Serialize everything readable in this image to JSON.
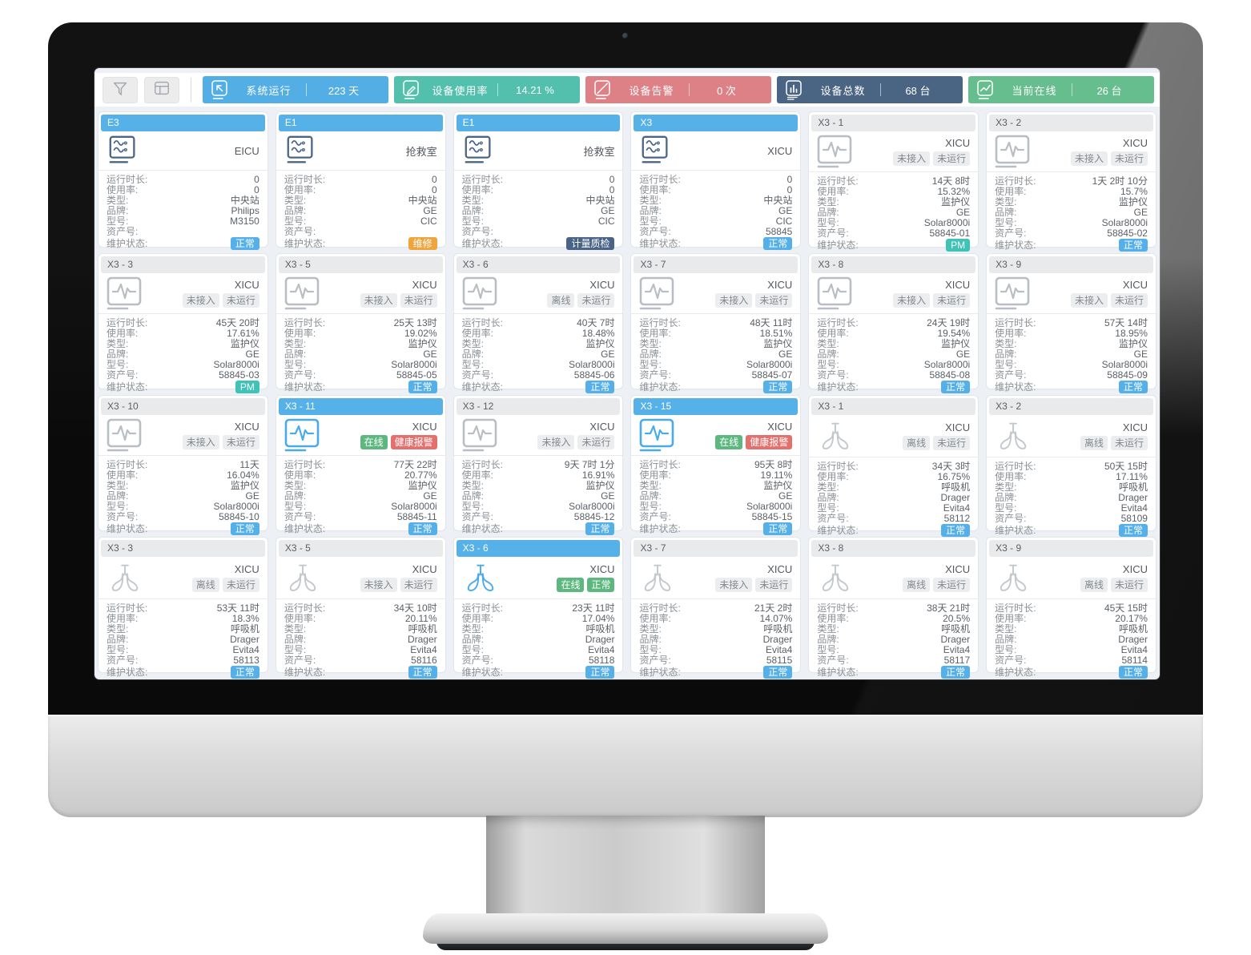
{
  "toolbar": {
    "filter_button": {
      "icon": "filter-icon"
    },
    "layout_button": {
      "icon": "layout-icon"
    },
    "stats": [
      {
        "name": "system-runtime",
        "icon": "cursor-icon",
        "label": "系统运行",
        "value": "223 天",
        "color": "#54aee6"
      },
      {
        "name": "device-usage",
        "icon": "pencil-icon",
        "label": "设备使用率",
        "value": "14.21 %",
        "color": "#52c0ad"
      },
      {
        "name": "device-alarms",
        "icon": "slash-icon",
        "label": "设备告警",
        "value": "0 次",
        "color": "#de8186"
      },
      {
        "name": "device-total",
        "icon": "bar-chart-icon",
        "label": "设备总数",
        "value": "68 台",
        "color": "#4a6483"
      },
      {
        "name": "online-now",
        "icon": "trend-icon",
        "label": "当前在线",
        "value": "26 台",
        "color": "#66bd8d"
      }
    ]
  },
  "card_field_labels": {
    "runtime": "运行时长:",
    "usage": "使用率:",
    "type": "类型:",
    "brand": "品牌:",
    "model": "型号:",
    "asset": "资产号:",
    "maintenance": "维护状态:"
  },
  "colors": {
    "screen_bg": "#edf0f4",
    "card_header_active": "#56b1e9",
    "chip_green": "#5cb87f",
    "chip_red": "#e2706d",
    "chip_gray_bg": "#ebedef",
    "maint_blue": "#55b0e9",
    "maint_teal": "#3fc3b6",
    "maint_orange": "#f0a43c",
    "maint_navy": "#4a6488",
    "icon_online": "#4aabea",
    "icon_central": "#4a6585"
  },
  "cards": [
    {
      "id": "E3",
      "active": true,
      "online": false,
      "icon": "central-station-icon",
      "location": "EICU",
      "statuses": [],
      "runtime": "0",
      "usage": "0",
      "type": "中央站",
      "brand": "Philips",
      "model": "M3150",
      "asset": "",
      "maintenance": {
        "label": "正常",
        "type": "blue"
      }
    },
    {
      "id": "E1",
      "active": true,
      "online": false,
      "icon": "central-station-icon",
      "location": "抢救室",
      "statuses": [],
      "runtime": "0",
      "usage": "0",
      "type": "中央站",
      "brand": "GE",
      "model": "CIC",
      "asset": "",
      "maintenance": {
        "label": "维修",
        "type": "orange"
      }
    },
    {
      "id": "E1",
      "active": true,
      "online": false,
      "icon": "central-station-icon",
      "location": "抢救室",
      "statuses": [],
      "runtime": "0",
      "usage": "0",
      "type": "中央站",
      "brand": "GE",
      "model": "CIC",
      "asset": "",
      "maintenance": {
        "label": "计量质检",
        "type": "navy"
      }
    },
    {
      "id": "X3",
      "active": true,
      "online": false,
      "icon": "central-station-icon",
      "location": "XICU",
      "statuses": [],
      "runtime": "0",
      "usage": "0",
      "type": "中央站",
      "brand": "GE",
      "model": "CIC",
      "asset": "58845",
      "maintenance": {
        "label": "正常",
        "type": "blue"
      }
    },
    {
      "id": "X3 - 1",
      "active": false,
      "online": false,
      "icon": "patient-monitor-icon",
      "location": "XICU",
      "statuses": [
        {
          "label": "未接入",
          "type": "gray"
        },
        {
          "label": "未运行",
          "type": "gray"
        }
      ],
      "runtime": "14天 8时",
      "usage": "15.32%",
      "type": "监护仪",
      "brand": "GE",
      "model": "Solar8000i",
      "asset": "58845-01",
      "maintenance": {
        "label": "PM",
        "type": "teal"
      }
    },
    {
      "id": "X3 - 2",
      "active": false,
      "online": false,
      "icon": "patient-monitor-icon",
      "location": "XICU",
      "statuses": [
        {
          "label": "未接入",
          "type": "gray"
        },
        {
          "label": "未运行",
          "type": "gray"
        }
      ],
      "runtime": "1天 2时 10分",
      "usage": "15.7%",
      "type": "监护仪",
      "brand": "GE",
      "model": "Solar8000i",
      "asset": "58845-02",
      "maintenance": {
        "label": "正常",
        "type": "blue"
      }
    },
    {
      "id": "X3 - 3",
      "active": false,
      "online": false,
      "icon": "patient-monitor-icon",
      "location": "XICU",
      "statuses": [
        {
          "label": "未接入",
          "type": "gray"
        },
        {
          "label": "未运行",
          "type": "gray"
        }
      ],
      "runtime": "45天 20时",
      "usage": "17.61%",
      "type": "监护仪",
      "brand": "GE",
      "model": "Solar8000i",
      "asset": "58845-03",
      "maintenance": {
        "label": "PM",
        "type": "teal"
      }
    },
    {
      "id": "X3 - 5",
      "active": false,
      "online": false,
      "icon": "patient-monitor-icon",
      "location": "XICU",
      "statuses": [
        {
          "label": "未接入",
          "type": "gray"
        },
        {
          "label": "未运行",
          "type": "gray"
        }
      ],
      "runtime": "25天 13时",
      "usage": "19.02%",
      "type": "监护仪",
      "brand": "GE",
      "model": "Solar8000i",
      "asset": "58845-05",
      "maintenance": {
        "label": "正常",
        "type": "blue"
      }
    },
    {
      "id": "X3 - 6",
      "active": false,
      "online": false,
      "icon": "patient-monitor-icon",
      "location": "XICU",
      "statuses": [
        {
          "label": "离线",
          "type": "gray"
        },
        {
          "label": "未运行",
          "type": "gray"
        }
      ],
      "runtime": "40天 7时",
      "usage": "18.48%",
      "type": "监护仪",
      "brand": "GE",
      "model": "Solar8000i",
      "asset": "58845-06",
      "maintenance": {
        "label": "正常",
        "type": "blue"
      }
    },
    {
      "id": "X3 - 7",
      "active": false,
      "online": false,
      "icon": "patient-monitor-icon",
      "location": "XICU",
      "statuses": [
        {
          "label": "未接入",
          "type": "gray"
        },
        {
          "label": "未运行",
          "type": "gray"
        }
      ],
      "runtime": "48天 11时",
      "usage": "18.51%",
      "type": "监护仪",
      "brand": "GE",
      "model": "Solar8000i",
      "asset": "58845-07",
      "maintenance": {
        "label": "正常",
        "type": "blue"
      }
    },
    {
      "id": "X3 - 8",
      "active": false,
      "online": false,
      "icon": "patient-monitor-icon",
      "location": "XICU",
      "statuses": [
        {
          "label": "未接入",
          "type": "gray"
        },
        {
          "label": "未运行",
          "type": "gray"
        }
      ],
      "runtime": "24天 19时",
      "usage": "19.54%",
      "type": "监护仪",
      "brand": "GE",
      "model": "Solar8000i",
      "asset": "58845-08",
      "maintenance": {
        "label": "正常",
        "type": "blue"
      }
    },
    {
      "id": "X3 - 9",
      "active": false,
      "online": false,
      "icon": "patient-monitor-icon",
      "location": "XICU",
      "statuses": [
        {
          "label": "未接入",
          "type": "gray"
        },
        {
          "label": "未运行",
          "type": "gray"
        }
      ],
      "runtime": "57天 14时",
      "usage": "18.95%",
      "type": "监护仪",
      "brand": "GE",
      "model": "Solar8000i",
      "asset": "58845-09",
      "maintenance": {
        "label": "正常",
        "type": "blue"
      }
    },
    {
      "id": "X3 - 10",
      "active": false,
      "online": false,
      "icon": "patient-monitor-icon",
      "location": "XICU",
      "statuses": [
        {
          "label": "未接入",
          "type": "gray"
        },
        {
          "label": "未运行",
          "type": "gray"
        }
      ],
      "runtime": "11天",
      "usage": "16.04%",
      "type": "监护仪",
      "brand": "GE",
      "model": "Solar8000i",
      "asset": "58845-10",
      "maintenance": {
        "label": "正常",
        "type": "blue"
      }
    },
    {
      "id": "X3 - 11",
      "active": true,
      "online": true,
      "icon": "patient-monitor-icon",
      "location": "XICU",
      "statuses": [
        {
          "label": "在线",
          "type": "green"
        },
        {
          "label": "健康报警",
          "type": "red"
        }
      ],
      "runtime": "77天 22时",
      "usage": "20.77%",
      "type": "监护仪",
      "brand": "GE",
      "model": "Solar8000i",
      "asset": "58845-11",
      "maintenance": {
        "label": "正常",
        "type": "blue"
      }
    },
    {
      "id": "X3 - 12",
      "active": false,
      "online": false,
      "icon": "patient-monitor-icon",
      "location": "XICU",
      "statuses": [
        {
          "label": "未接入",
          "type": "gray"
        },
        {
          "label": "未运行",
          "type": "gray"
        }
      ],
      "runtime": "9天 7时 1分",
      "usage": "16.91%",
      "type": "监护仪",
      "brand": "GE",
      "model": "Solar8000i",
      "asset": "58845-12",
      "maintenance": {
        "label": "正常",
        "type": "blue"
      }
    },
    {
      "id": "X3 - 15",
      "active": true,
      "online": true,
      "icon": "patient-monitor-icon",
      "location": "XICU",
      "statuses": [
        {
          "label": "在线",
          "type": "green"
        },
        {
          "label": "健康报警",
          "type": "red"
        }
      ],
      "runtime": "95天 8时",
      "usage": "19.11%",
      "type": "监护仪",
      "brand": "GE",
      "model": "Solar8000i",
      "asset": "58845-15",
      "maintenance": {
        "label": "正常",
        "type": "blue"
      }
    },
    {
      "id": "X3 - 1",
      "active": false,
      "online": false,
      "icon": "ventilator-icon",
      "location": "XICU",
      "statuses": [
        {
          "label": "离线",
          "type": "gray"
        },
        {
          "label": "未运行",
          "type": "gray"
        }
      ],
      "runtime": "34天 3时",
      "usage": "16.75%",
      "type": "呼吸机",
      "brand": "Drager",
      "model": "Evita4",
      "asset": "58112",
      "maintenance": {
        "label": "正常",
        "type": "blue"
      }
    },
    {
      "id": "X3 - 2",
      "active": false,
      "online": false,
      "icon": "ventilator-icon",
      "location": "XICU",
      "statuses": [
        {
          "label": "离线",
          "type": "gray"
        },
        {
          "label": "未运行",
          "type": "gray"
        }
      ],
      "runtime": "50天 15时",
      "usage": "17.11%",
      "type": "呼吸机",
      "brand": "Drager",
      "model": "Evita4",
      "asset": "58109",
      "maintenance": {
        "label": "正常",
        "type": "blue"
      }
    },
    {
      "id": "X3 - 3",
      "active": false,
      "online": false,
      "icon": "ventilator-icon",
      "location": "XICU",
      "statuses": [
        {
          "label": "离线",
          "type": "gray"
        },
        {
          "label": "未运行",
          "type": "gray"
        }
      ],
      "runtime": "53天 11时",
      "usage": "18.3%",
      "type": "呼吸机",
      "brand": "Drager",
      "model": "Evita4",
      "asset": "58113",
      "maintenance": {
        "label": "正常",
        "type": "blue"
      }
    },
    {
      "id": "X3 - 5",
      "active": false,
      "online": false,
      "icon": "ventilator-icon",
      "location": "XICU",
      "statuses": [
        {
          "label": "未接入",
          "type": "gray"
        },
        {
          "label": "未运行",
          "type": "gray"
        }
      ],
      "runtime": "34天 10时",
      "usage": "20.11%",
      "type": "呼吸机",
      "brand": "Drager",
      "model": "Evita4",
      "asset": "58116",
      "maintenance": {
        "label": "正常",
        "type": "blue"
      }
    },
    {
      "id": "X3 - 6",
      "active": true,
      "online": true,
      "icon": "ventilator-icon",
      "location": "XICU",
      "statuses": [
        {
          "label": "在线",
          "type": "green"
        },
        {
          "label": "正常",
          "type": "green"
        }
      ],
      "runtime": "23天 11时",
      "usage": "17.04%",
      "type": "呼吸机",
      "brand": "Drager",
      "model": "Evita4",
      "asset": "58118",
      "maintenance": {
        "label": "正常",
        "type": "blue"
      }
    },
    {
      "id": "X3 - 7",
      "active": false,
      "online": false,
      "icon": "ventilator-icon",
      "location": "XICU",
      "statuses": [
        {
          "label": "未接入",
          "type": "gray"
        },
        {
          "label": "未运行",
          "type": "gray"
        }
      ],
      "runtime": "21天 2时",
      "usage": "14.07%",
      "type": "呼吸机",
      "brand": "Drager",
      "model": "Evita4",
      "asset": "58115",
      "maintenance": {
        "label": "正常",
        "type": "blue"
      }
    },
    {
      "id": "X3 - 8",
      "active": false,
      "online": false,
      "icon": "ventilator-icon",
      "location": "XICU",
      "statuses": [
        {
          "label": "离线",
          "type": "gray"
        },
        {
          "label": "未运行",
          "type": "gray"
        }
      ],
      "runtime": "38天 21时",
      "usage": "20.5%",
      "type": "呼吸机",
      "brand": "Drager",
      "model": "Evita4",
      "asset": "58117",
      "maintenance": {
        "label": "正常",
        "type": "blue"
      }
    },
    {
      "id": "X3 - 9",
      "active": false,
      "online": false,
      "icon": "ventilator-icon",
      "location": "XICU",
      "statuses": [
        {
          "label": "离线",
          "type": "gray"
        },
        {
          "label": "未运行",
          "type": "gray"
        }
      ],
      "runtime": "45天 15时",
      "usage": "20.17%",
      "type": "呼吸机",
      "brand": "Drager",
      "model": "Evita4",
      "asset": "58114",
      "maintenance": {
        "label": "正常",
        "type": "blue"
      }
    }
  ]
}
